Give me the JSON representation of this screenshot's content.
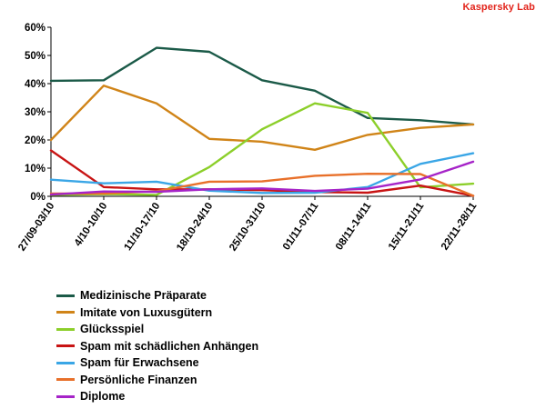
{
  "brand": {
    "name": "Kaspersky Lab",
    "color": "#e2231a"
  },
  "chart_data": {
    "type": "line",
    "categories": [
      "27/09-03/10",
      "4/10-10/10",
      "11/10-17/10",
      "18/10-24/10",
      "25/10-31/10",
      "01/11-07/11",
      "08/11-14/11",
      "15/11-21/11",
      "22/11-28/11"
    ],
    "y_ticks": [
      "0%",
      "10%",
      "20%",
      "30%",
      "40%",
      "50%",
      "60%"
    ],
    "ylim": [
      0,
      60
    ],
    "grid": false,
    "legend_position": "bottom",
    "series": [
      {
        "name": "Medizinische Präparate",
        "color": "#1b5a48",
        "values": [
          41,
          41.2,
          52.7,
          51.3,
          41.2,
          37.5,
          27.8,
          27,
          25.5
        ]
      },
      {
        "name": "Imitate von Luxusgütern",
        "color": "#d08418",
        "values": [
          20,
          39.3,
          33,
          20.4,
          19.4,
          16.5,
          21.8,
          24.3,
          25.5
        ]
      },
      {
        "name": "Glücksspiel",
        "color": "#8ccf2a",
        "values": [
          0.5,
          0.8,
          0.5,
          10.4,
          23.8,
          33,
          29.6,
          3.2,
          4.5
        ]
      },
      {
        "name": "Spam mit schädlichen Anhängen",
        "color": "#c81414",
        "values": [
          16.3,
          3.3,
          2.5,
          2.5,
          2.2,
          1.5,
          1.3,
          3.8,
          0.2
        ]
      },
      {
        "name": "Spam für Erwachsene",
        "color": "#3aa6e6",
        "values": [
          5.9,
          4.6,
          5.2,
          2,
          1.2,
          1.3,
          3.3,
          11.5,
          15.3
        ]
      },
      {
        "name": "Persönliche Finanzen",
        "color": "#e8702a",
        "values": [
          1,
          1,
          1.8,
          5.2,
          5.3,
          7.3,
          8,
          7.9,
          0.2
        ]
      },
      {
        "name": "Diplome",
        "color": "#a624c8",
        "values": [
          0.6,
          1.7,
          1.6,
          2.5,
          2.8,
          1.9,
          2.7,
          6,
          12.3
        ]
      }
    ]
  }
}
